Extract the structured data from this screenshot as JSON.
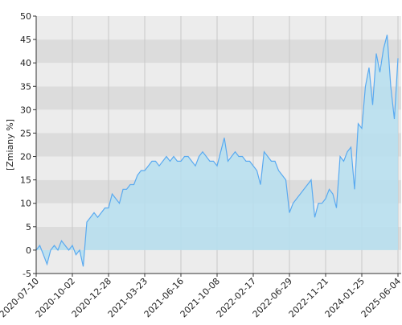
{
  "chart_data": {
    "type": "area",
    "y_label": "[Zmiany %]",
    "categories": [
      "2020-07-10",
      null,
      null,
      null,
      null,
      null,
      null,
      null,
      null,
      null,
      "2020-10-02",
      null,
      null,
      null,
      null,
      null,
      null,
      null,
      null,
      null,
      "2020-12-28",
      null,
      null,
      null,
      null,
      null,
      null,
      null,
      null,
      null,
      "2021-03-23",
      null,
      null,
      null,
      null,
      null,
      null,
      null,
      null,
      null,
      "2021-06-16",
      null,
      null,
      null,
      null,
      null,
      null,
      null,
      null,
      null,
      "2021-10-08",
      null,
      null,
      null,
      null,
      null,
      null,
      null,
      null,
      null,
      "2022-02-17",
      null,
      null,
      null,
      null,
      null,
      null,
      null,
      null,
      null,
      "2022-06-29",
      null,
      null,
      null,
      null,
      null,
      null,
      null,
      null,
      null,
      "2022-11-21",
      null,
      null,
      null,
      null,
      null,
      null,
      null,
      null,
      null,
      "2024-01-25",
      null,
      null,
      null,
      null,
      null,
      null,
      null,
      null,
      null,
      "2025-06-04"
    ],
    "values": [
      0,
      1,
      -1,
      -3,
      0,
      1,
      0,
      2,
      1,
      0,
      1,
      -1,
      0,
      -3.5,
      6,
      7,
      8,
      7,
      8,
      9,
      9,
      12,
      11,
      10,
      13,
      13,
      14,
      14,
      16,
      17,
      17,
      18,
      19,
      19,
      18,
      19,
      20,
      19,
      20,
      19,
      19,
      20,
      20,
      19,
      18,
      20,
      21,
      20,
      19,
      19,
      18,
      21,
      24,
      19,
      20,
      21,
      20,
      20,
      19,
      19,
      18,
      17,
      14,
      21,
      20,
      19,
      19,
      17,
      16,
      15,
      8,
      10,
      11,
      12,
      13,
      14,
      15,
      7,
      10,
      10,
      11,
      13,
      12,
      9,
      20,
      19,
      21,
      22,
      13,
      27,
      26,
      35,
      39,
      31,
      42,
      38,
      43,
      46,
      35,
      28,
      41
    ],
    "color": "#5aaaf0",
    "fill": "#b6dff0",
    "ylim": [
      -5,
      50
    ],
    "yticks": [
      -5,
      0,
      5,
      10,
      15,
      20,
      25,
      30,
      35,
      40,
      45,
      50
    ],
    "grid": true
  }
}
